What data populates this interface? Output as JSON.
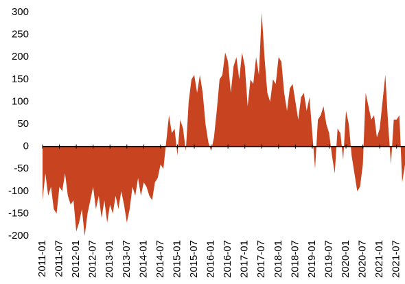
{
  "chart_data": {
    "type": "area",
    "color": "#c8431f",
    "x": [
      "2011-01",
      "2011-02",
      "2011-03",
      "2011-04",
      "2011-05",
      "2011-06",
      "2011-07",
      "2011-08",
      "2011-09",
      "2011-10",
      "2011-11",
      "2011-12",
      "2012-01",
      "2012-02",
      "2012-03",
      "2012-04",
      "2012-05",
      "2012-06",
      "2012-07",
      "2012-08",
      "2012-09",
      "2012-10",
      "2012-11",
      "2012-12",
      "2013-01",
      "2013-02",
      "2013-03",
      "2013-04",
      "2013-05",
      "2013-06",
      "2013-07",
      "2013-08",
      "2013-09",
      "2013-10",
      "2013-11",
      "2013-12",
      "2014-01",
      "2014-02",
      "2014-03",
      "2014-04",
      "2014-05",
      "2014-06",
      "2014-07",
      "2014-08",
      "2014-09",
      "2014-10",
      "2014-11",
      "2014-12",
      "2015-01",
      "2015-02",
      "2015-03",
      "2015-04",
      "2015-05",
      "2015-06",
      "2015-07",
      "2015-08",
      "2015-09",
      "2015-10",
      "2015-11",
      "2015-12",
      "2016-01",
      "2016-02",
      "2016-03",
      "2016-04",
      "2016-05",
      "2016-06",
      "2016-07",
      "2016-08",
      "2016-09",
      "2016-10",
      "2016-11",
      "2016-12",
      "2017-01",
      "2017-02",
      "2017-03",
      "2017-04",
      "2017-05",
      "2017-06",
      "2017-07",
      "2017-08",
      "2017-09",
      "2017-10",
      "2017-11",
      "2017-12",
      "2018-01",
      "2018-02",
      "2018-03",
      "2018-04",
      "2018-05",
      "2018-06",
      "2018-07",
      "2018-08",
      "2018-09",
      "2018-10",
      "2018-11",
      "2018-12",
      "2019-01",
      "2019-02",
      "2019-03",
      "2019-04",
      "2019-05",
      "2019-06",
      "2019-07",
      "2019-08",
      "2019-09",
      "2019-10",
      "2019-11",
      "2019-12",
      "2020-01",
      "2020-02",
      "2020-03",
      "2020-04",
      "2020-05",
      "2020-06",
      "2020-07",
      "2020-08",
      "2020-09",
      "2020-10",
      "2020-11",
      "2020-12",
      "2021-01",
      "2021-02",
      "2021-03",
      "2021-04",
      "2021-05",
      "2021-06",
      "2021-07",
      "2021-08",
      "2021-09",
      "2021-10"
    ],
    "values": [
      -120,
      -60,
      -110,
      -90,
      -140,
      -150,
      -90,
      -100,
      -60,
      -110,
      -130,
      -120,
      -190,
      -170,
      -140,
      -200,
      -150,
      -120,
      -90,
      -140,
      -110,
      -160,
      -120,
      -170,
      -130,
      -150,
      -110,
      -140,
      -100,
      -130,
      -170,
      -140,
      -90,
      -110,
      -70,
      -110,
      -80,
      -90,
      -110,
      -120,
      -80,
      -70,
      -40,
      -50,
      10,
      70,
      30,
      40,
      -20,
      60,
      40,
      -10,
      100,
      150,
      160,
      120,
      160,
      120,
      50,
      10,
      -10,
      20,
      80,
      150,
      160,
      210,
      190,
      120,
      180,
      200,
      150,
      210,
      180,
      90,
      150,
      140,
      200,
      160,
      300,
      200,
      120,
      100,
      150,
      140,
      200,
      190,
      120,
      80,
      130,
      140,
      100,
      60,
      110,
      120,
      80,
      110,
      30,
      -50,
      60,
      70,
      90,
      50,
      30,
      -20,
      -60,
      40,
      30,
      -30,
      80,
      50,
      -20,
      -60,
      -100,
      -90,
      -40,
      120,
      90,
      60,
      70,
      20,
      40,
      100,
      160,
      50,
      -40,
      60,
      60,
      70,
      -80,
      -40
    ],
    "ylim": [
      -200,
      300
    ],
    "yticks": [
      -200,
      -150,
      -100,
      -50,
      0,
      50,
      100,
      150,
      200,
      250,
      300
    ],
    "xlim": [
      "2011-01",
      "2021-10"
    ],
    "xticks": [
      "2011-01",
      "2011-07",
      "2012-01",
      "2012-07",
      "2013-01",
      "2013-07",
      "2014-01",
      "2014-07",
      "2015-01",
      "2015-07",
      "2016-01",
      "2016-07",
      "2017-01",
      "2017-07",
      "2018-01",
      "2018-07",
      "2019-01",
      "2019-07",
      "2020-01",
      "2020-07",
      "2021-01",
      "2021-07"
    ]
  }
}
